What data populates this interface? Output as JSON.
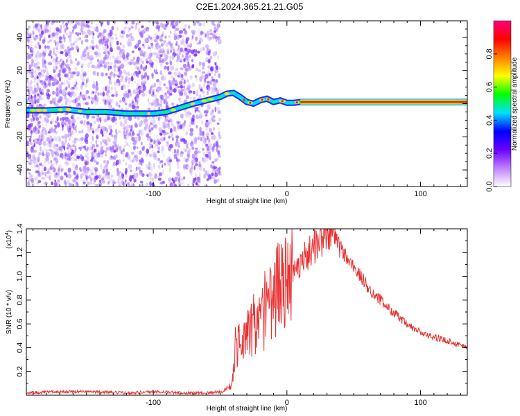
{
  "title": "C2E1.2024.365.21.21.G05",
  "chart_data": [
    {
      "type": "heatmap",
      "xlabel": "Height of straight line (km)",
      "ylabel": "Frequency (Hz)",
      "xlim": [
        -195,
        135
      ],
      "ylim": [
        -50,
        50
      ],
      "xticks": [
        -100,
        0,
        100
      ],
      "yticks": [
        -40,
        -20,
        0,
        20,
        40
      ],
      "colorbar": {
        "label": "Normalized spectral amplitude",
        "range": [
          0,
          1
        ],
        "ticks": [
          0.0,
          0.2,
          0.4,
          0.6,
          0.8
        ],
        "tick_labels": [
          "0.0",
          "0.2",
          "0.4",
          "0.6",
          "0.8"
        ],
        "colors": [
          "#ffffff",
          "#c080ff",
          "#6a00ff",
          "#0000ff",
          "#00e0ff",
          "#00ff00",
          "#ffff00",
          "#ff8000",
          "#ff0000",
          "#ff0080"
        ]
      },
      "ridge": {
        "x": [
          -195,
          -180,
          -165,
          -150,
          -135,
          -120,
          -110,
          -100,
          -90,
          -80,
          -70,
          -60,
          -50,
          -45,
          -40,
          -35,
          -30,
          -25,
          -20,
          -15,
          -10,
          -5,
          0,
          5,
          10,
          135
        ],
        "y": [
          -4,
          -4,
          -3.5,
          -5,
          -5,
          -6,
          -6,
          -6,
          -5,
          -2.5,
          0,
          2,
          4,
          6,
          6.5,
          4,
          1,
          0,
          2,
          3,
          1,
          2,
          0.5,
          0.5,
          1,
          1
        ]
      }
    },
    {
      "type": "line",
      "xlabel": "Height of straight line (km)",
      "ylabel": "SNR (10 * v/v)",
      "y_multiplier": "(x10",
      "y_multiplier_exp": "4",
      "y_multiplier_close": ")",
      "xlim": [
        -195,
        135
      ],
      "ylim": [
        0,
        1.4
      ],
      "xticks": [
        -100,
        0,
        100
      ],
      "yticks": [
        0.2,
        0.4,
        0.6,
        0.8,
        1.0,
        1.2,
        1.4
      ],
      "ytick_labels": [
        "0.2",
        "0.4",
        "0.6",
        "0.8",
        "1.0",
        "1.2",
        "1.4"
      ],
      "color": "#e83030",
      "x": [
        -195,
        -170,
        -150,
        -120,
        -100,
        -80,
        -60,
        -48,
        -42,
        -40,
        -38,
        -35,
        -32,
        -30,
        -25,
        -20,
        -15,
        -10,
        -5,
        -2,
        0,
        5,
        10,
        15,
        20,
        25,
        30,
        33,
        36,
        40,
        45,
        50,
        55,
        60,
        65,
        70,
        75,
        80,
        85,
        90,
        95,
        100,
        105,
        110,
        115,
        120,
        125,
        130,
        135
      ],
      "y": [
        0.02,
        0.03,
        0.03,
        0.02,
        0.03,
        0.02,
        0.02,
        0.03,
        0.08,
        0.2,
        0.4,
        0.5,
        0.45,
        0.5,
        0.55,
        0.6,
        0.72,
        0.85,
        0.92,
        0.95,
        1.0,
        1.05,
        1.12,
        1.18,
        1.25,
        1.3,
        1.35,
        1.38,
        1.33,
        1.25,
        1.15,
        1.08,
        1.0,
        0.92,
        0.85,
        0.8,
        0.74,
        0.7,
        0.64,
        0.59,
        0.56,
        0.53,
        0.5,
        0.49,
        0.47,
        0.46,
        0.44,
        0.42,
        0.41
      ]
    }
  ]
}
